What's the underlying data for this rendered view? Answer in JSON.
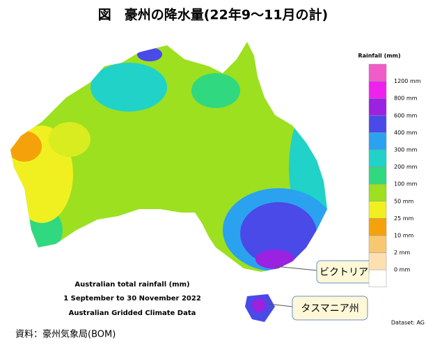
{
  "title": "図　豪州の降水量(22年9～11月の計)",
  "legend": {
    "title": "Rainfall (mm)",
    "labels": [
      "1200 mm",
      "800 mm",
      "600 mm",
      "400 mm",
      "300 mm",
      "200 mm",
      "100 mm",
      "50 mm",
      "25 mm",
      "10 mm",
      "2 mm",
      "0 mm"
    ],
    "colors": [
      "#f05cc8",
      "#ee22ee",
      "#9a22e0",
      "#4a4ae8",
      "#2aa2f0",
      "#20d2c8",
      "#30d880",
      "#9ce020",
      "#f0f020",
      "#f5a20a",
      "#f8c870",
      "#fde0b0",
      "#ffffff"
    ]
  },
  "caption": [
    "Australian total rainfall (mm)",
    "1 September to 30 November 2022",
    "Australian Gridded Climate Data"
  ],
  "callouts": [
    "ビクトリア州",
    "タスマニア州"
  ],
  "dataset": "Dataset: AG",
  "source": "資料：豪州気象局(BOM)"
}
